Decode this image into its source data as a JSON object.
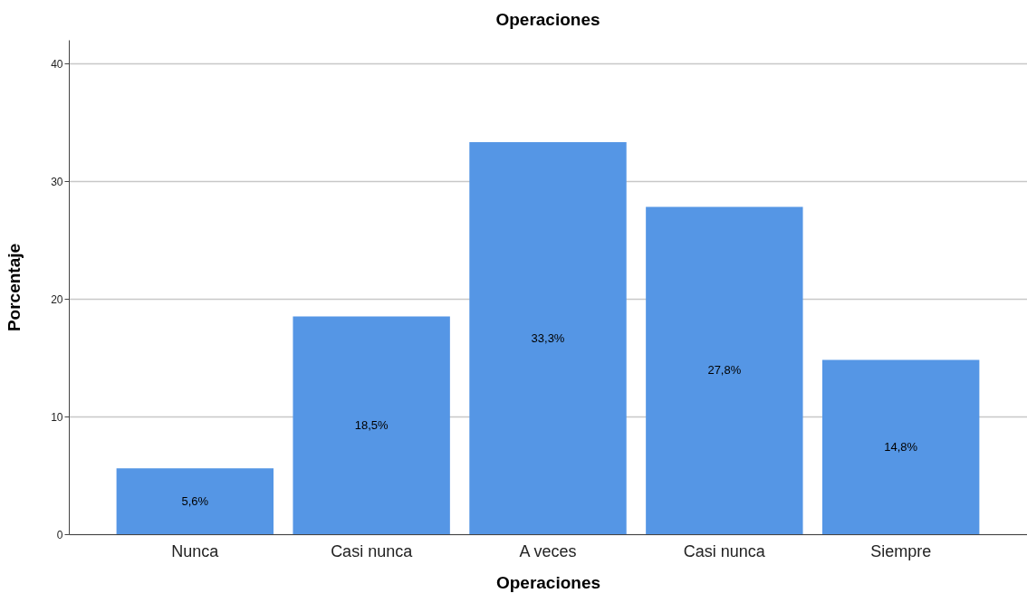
{
  "chart_data": {
    "type": "bar",
    "title": "Operaciones",
    "xlabel": "Operaciones",
    "ylabel": "Porcentaje",
    "categories": [
      "Nunca",
      "Casi nunca",
      "A veces",
      "Casi nunca",
      "Siempre"
    ],
    "values": [
      5.6,
      18.5,
      33.3,
      27.8,
      14.8
    ],
    "value_labels": [
      "5,6%",
      "18,5%",
      "33,3%",
      "27,8%",
      "14,8%"
    ],
    "color": "#5596e5",
    "ylim": [
      0,
      42
    ],
    "yticks": [
      0,
      10,
      20,
      30,
      40
    ],
    "grid": "y"
  }
}
